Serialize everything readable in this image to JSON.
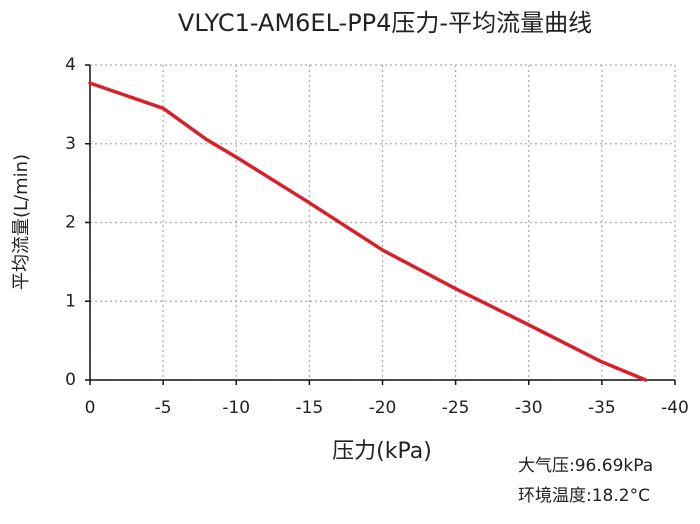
{
  "chart_data": {
    "type": "line",
    "title": "VLYC1-AM6EL-PP4压力-平均流量曲线",
    "x_label": "压力(kPa)",
    "y_label": "平均流量(L/min)",
    "annotations": [
      "大气压:96.69kPa",
      "环境温度:18.2°C"
    ],
    "x": [
      0,
      -5,
      -8,
      -10,
      -15,
      -20,
      -25,
      -30,
      -35,
      -38
    ],
    "series": [
      {
        "name": "平均流量",
        "color": "#d9202a",
        "values": [
          3.77,
          3.45,
          3.05,
          2.83,
          2.25,
          1.65,
          1.16,
          0.7,
          0.23,
          0
        ]
      }
    ],
    "xlim": [
      0,
      -40
    ],
    "xticks": [
      0,
      -5,
      -10,
      -15,
      -20,
      -25,
      -30,
      -35,
      -40
    ],
    "ylim": [
      0,
      4
    ],
    "yticks": [
      0,
      1,
      2,
      3,
      4
    ],
    "grid": true
  }
}
